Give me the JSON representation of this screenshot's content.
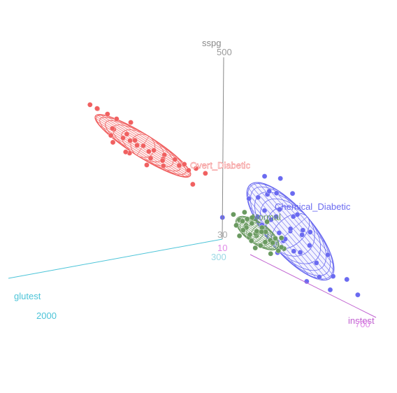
{
  "chart_data": {
    "type": "scatter",
    "title": "",
    "axes": {
      "x": {
        "label": "glutest",
        "ticks": [
          300,
          2000
        ],
        "range": [
          300,
          2000
        ],
        "color": "#4cc4d8"
      },
      "y": {
        "label": "instest",
        "ticks": [
          10,
          700
        ],
        "range": [
          10,
          700
        ],
        "color": "#c060d0"
      },
      "z": {
        "label": "sspg",
        "ticks": [
          30,
          500
        ],
        "range": [
          30,
          500
        ],
        "color": "#888888"
      }
    },
    "series": [
      {
        "name": "Overt_Diabetic",
        "color": "#f06060",
        "ellipsoid": true,
        "points": [
          [
            1320,
            52,
            445
          ],
          [
            1260,
            60,
            430
          ],
          [
            1180,
            80,
            420
          ],
          [
            1300,
            70,
            410
          ],
          [
            1240,
            95,
            400
          ],
          [
            1200,
            110,
            385
          ],
          [
            1380,
            40,
            460
          ],
          [
            1150,
            120,
            370
          ],
          [
            1100,
            140,
            360
          ],
          [
            1280,
            100,
            395
          ],
          [
            1050,
            160,
            350
          ],
          [
            1220,
            130,
            380
          ],
          [
            1000,
            180,
            340
          ],
          [
            1340,
            85,
            420
          ],
          [
            1160,
            150,
            365
          ],
          [
            1420,
            60,
            470
          ],
          [
            960,
            200,
            330
          ],
          [
            1080,
            170,
            345
          ],
          [
            1250,
            115,
            390
          ],
          [
            900,
            220,
            320
          ],
          [
            1300,
            140,
            370
          ],
          [
            1120,
            190,
            350
          ],
          [
            1380,
            100,
            410
          ],
          [
            1200,
            180,
            360
          ],
          [
            860,
            240,
            310
          ],
          [
            1460,
            50,
            480
          ],
          [
            1020,
            210,
            335
          ],
          [
            980,
            230,
            325
          ],
          [
            1350,
            150,
            380
          ],
          [
            1150,
            210,
            345
          ],
          [
            1000,
            260,
            300
          ],
          [
            1250,
            190,
            350
          ],
          [
            1400,
            120,
            400
          ]
        ]
      },
      {
        "name": "Chemical_Diabetic",
        "color": "#6a6af0",
        "ellipsoid": true,
        "points": [
          [
            540,
            300,
            190
          ],
          [
            520,
            320,
            210
          ],
          [
            500,
            280,
            230
          ],
          [
            480,
            350,
            200
          ],
          [
            560,
            330,
            180
          ],
          [
            460,
            300,
            240
          ],
          [
            510,
            380,
            170
          ],
          [
            490,
            420,
            190
          ],
          [
            470,
            360,
            220
          ],
          [
            530,
            410,
            160
          ],
          [
            450,
            450,
            180
          ],
          [
            440,
            330,
            250
          ],
          [
            520,
            480,
            150
          ],
          [
            480,
            500,
            170
          ],
          [
            430,
            400,
            210
          ],
          [
            500,
            440,
            140
          ],
          [
            460,
            520,
            130
          ],
          [
            420,
            470,
            190
          ],
          [
            540,
            360,
            200
          ],
          [
            470,
            600,
            120
          ],
          [
            440,
            560,
            160
          ],
          [
            510,
            560,
            110
          ],
          [
            400,
            380,
            260
          ],
          [
            560,
            400,
            130
          ],
          [
            430,
            640,
            120
          ],
          [
            480,
            470,
            200
          ],
          [
            520,
            250,
            220
          ],
          [
            450,
            700,
            100
          ],
          [
            410,
            260,
            270
          ],
          [
            540,
            520,
            90
          ],
          [
            460,
            380,
            150
          ],
          [
            500,
            330,
            260
          ],
          [
            420,
            560,
            70
          ],
          [
            470,
            440,
            230
          ],
          [
            390,
            320,
            280
          ],
          [
            610,
            180,
            160
          ]
        ]
      },
      {
        "name": "Normal",
        "color": "#6a9a60",
        "ellipsoid": true,
        "points": [
          [
            360,
            150,
            110
          ],
          [
            350,
            170,
            120
          ],
          [
            340,
            140,
            100
          ],
          [
            370,
            160,
            130
          ],
          [
            330,
            180,
            90
          ],
          [
            380,
            130,
            120
          ],
          [
            355,
            190,
            100
          ],
          [
            345,
            155,
            80
          ],
          [
            365,
            200,
            110
          ],
          [
            335,
            120,
            110
          ],
          [
            375,
            175,
            95
          ],
          [
            340,
            210,
            120
          ],
          [
            360,
            120,
            75
          ],
          [
            350,
            230,
            90
          ],
          [
            385,
            150,
            100
          ],
          [
            330,
            160,
            130
          ],
          [
            370,
            220,
            80
          ],
          [
            345,
            250,
            100
          ],
          [
            355,
            140,
            140
          ],
          [
            365,
            240,
            120
          ],
          [
            325,
            200,
            105
          ],
          [
            390,
            190,
            85
          ],
          [
            340,
            270,
            110
          ],
          [
            360,
            260,
            70
          ],
          [
            350,
            100,
            95
          ],
          [
            380,
            280,
            105
          ],
          [
            335,
            230,
            140
          ],
          [
            370,
            300,
            90
          ],
          [
            345,
            300,
            120
          ],
          [
            360,
            320,
            100
          ],
          [
            355,
            90,
            120
          ],
          [
            400,
            330,
            110
          ],
          [
            340,
            180,
            60
          ]
        ]
      }
    ]
  }
}
